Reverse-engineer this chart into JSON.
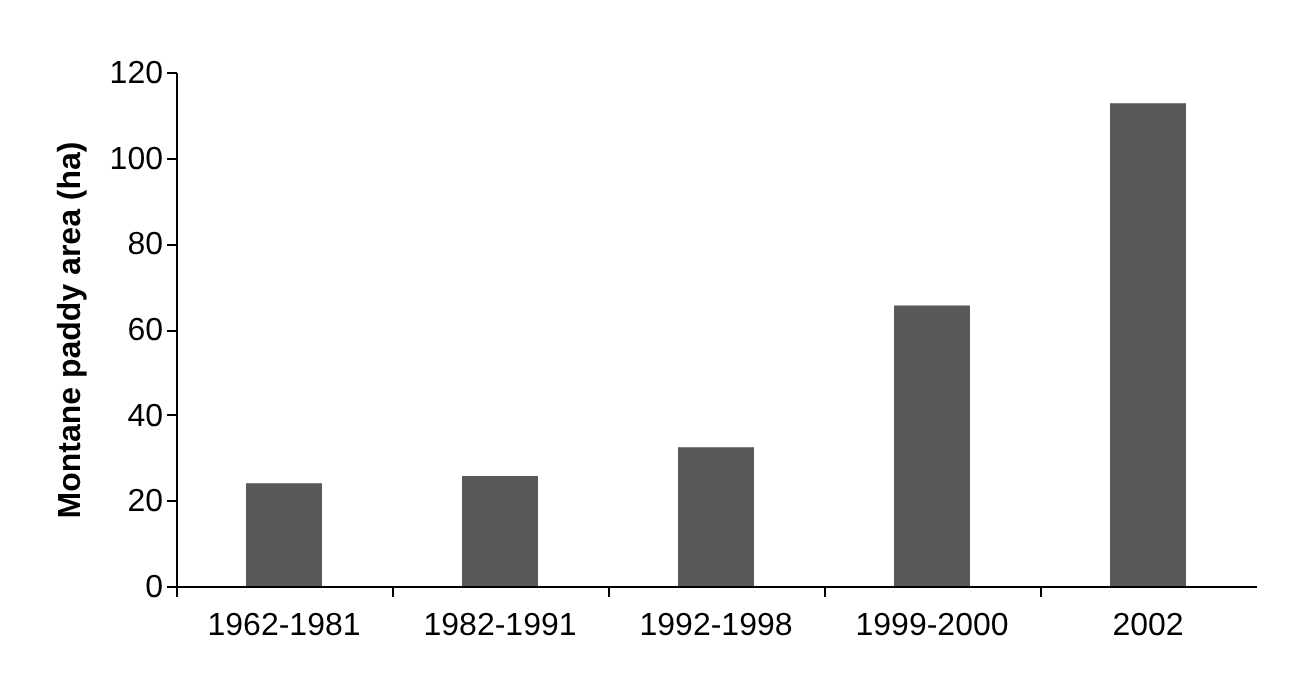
{
  "chart_data": {
    "type": "bar",
    "ylabel": "Montane paddy area (ha)",
    "categories": [
      "1962-1981",
      "1982-1991",
      "1992-1998",
      "1999-2000",
      "2002"
    ],
    "values": [
      24,
      25.7,
      32.4,
      65.5,
      112.7
    ],
    "color": "#595959",
    "ylim": [
      0,
      120
    ],
    "yticks": [
      0,
      20,
      40,
      60,
      80,
      100,
      120
    ]
  }
}
